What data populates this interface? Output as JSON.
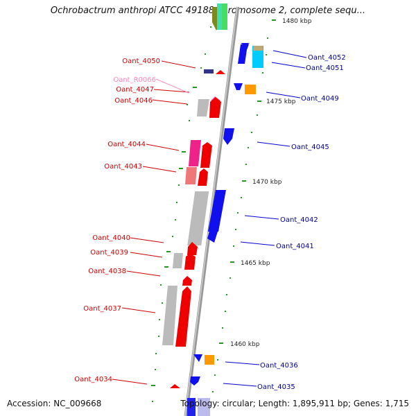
{
  "title": "Ochrobactrum anthropi ATCC 49188 chromosome 2, complete sequ...",
  "footer": {
    "accession": "Accession: NC_009668",
    "summary": "Topology: circular; Length: 1,895,911 bp; Genes: 1,715"
  },
  "colors": {
    "left_label": "#cc0000",
    "right_label": "#00008b",
    "rna_label": "#ff88bb",
    "backbone": "#999999",
    "tick": "#229922"
  },
  "scale_labels": [
    {
      "id": "kbp-1480",
      "text": "1480 kbp"
    },
    {
      "id": "kbp-1475",
      "text": "1475 kbp"
    },
    {
      "id": "kbp-1470",
      "text": "1470 kbp"
    },
    {
      "id": "kbp-1465",
      "text": "1465 kbp"
    },
    {
      "id": "kbp-1460",
      "text": "1460 kbp"
    }
  ],
  "genes_left": [
    {
      "id": "oant-4050",
      "label": "Oant_4050"
    },
    {
      "id": "oant-r0066",
      "label": "Oant_R0066"
    },
    {
      "id": "oant-4047",
      "label": "Oant_4047"
    },
    {
      "id": "oant-4046",
      "label": "Oant_4046"
    },
    {
      "id": "oant-4044",
      "label": "Oant_4044"
    },
    {
      "id": "oant-4043",
      "label": "Oant_4043"
    },
    {
      "id": "oant-4040",
      "label": "Oant_4040"
    },
    {
      "id": "oant-4039",
      "label": "Oant_4039"
    },
    {
      "id": "oant-4038",
      "label": "Oant_4038"
    },
    {
      "id": "oant-4037",
      "label": "Oant_4037"
    },
    {
      "id": "oant-4034",
      "label": "Oant_4034"
    }
  ],
  "genes_right": [
    {
      "id": "oant-4052",
      "label": "Oant_4052"
    },
    {
      "id": "oant-4051",
      "label": "Oant_4051"
    },
    {
      "id": "oant-4049",
      "label": "Oant_4049"
    },
    {
      "id": "oant-4045",
      "label": "Oant_4045"
    },
    {
      "id": "oant-4042",
      "label": "Oant_4042"
    },
    {
      "id": "oant-4041",
      "label": "Oant_4041"
    },
    {
      "id": "oant-4036",
      "label": "Oant_4036"
    },
    {
      "id": "oant-4035",
      "label": "Oant_4035"
    }
  ]
}
